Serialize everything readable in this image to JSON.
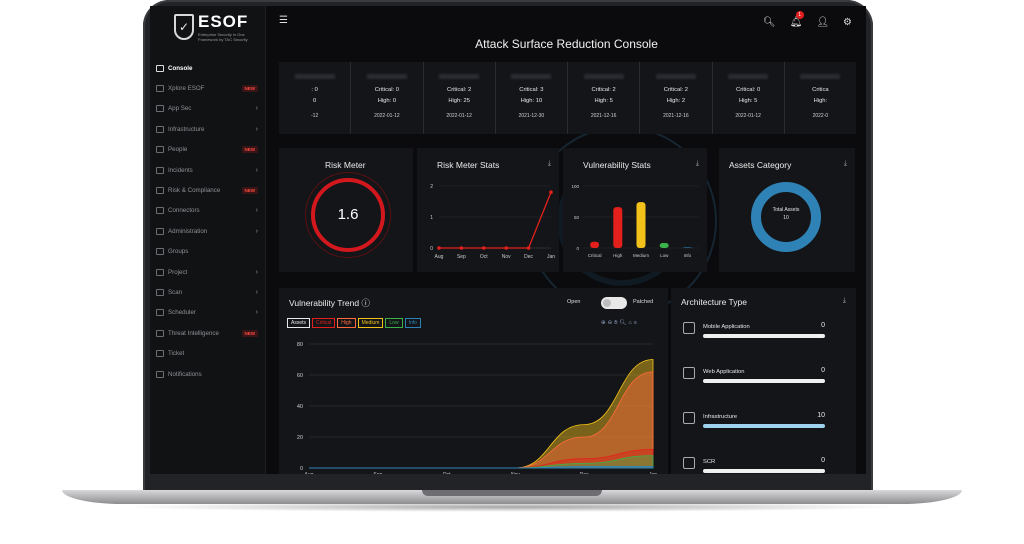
{
  "brand": {
    "name": "ESOF",
    "sub": "Enterprise Security in One Framework",
    "by": "by TAC Security"
  },
  "header": {
    "title": "Attack Surface Reduction Console",
    "notifications_count": "1"
  },
  "sidebar": {
    "items": [
      {
        "label": "Console",
        "active": true,
        "badge": "",
        "chevron": false
      },
      {
        "label": "Xplore ESOF",
        "badge": "NEW",
        "chevron": false
      },
      {
        "label": "App Sec",
        "badge": "",
        "chevron": true
      },
      {
        "label": "Infrastructure",
        "badge": "",
        "chevron": true
      },
      {
        "label": "People",
        "badge": "NEW",
        "chevron": false
      },
      {
        "label": "Incidents",
        "badge": "",
        "chevron": true
      },
      {
        "label": "Risk & Compliance",
        "badge": "NEW",
        "chevron": false
      },
      {
        "label": "Connectors",
        "badge": "",
        "chevron": true
      },
      {
        "label": "Administration",
        "badge": "",
        "chevron": true
      },
      {
        "label": "Groups",
        "badge": "",
        "chevron": false
      },
      {
        "label": "Project",
        "badge": "",
        "chevron": true
      },
      {
        "label": "Scan",
        "badge": "",
        "chevron": true
      },
      {
        "label": "Scheduler",
        "badge": "",
        "chevron": true
      },
      {
        "label": "Threat Intelligence",
        "badge": "NEW",
        "chevron": false
      },
      {
        "label": "Ticket",
        "badge": "",
        "chevron": false
      },
      {
        "label": "Notifications",
        "badge": "",
        "chevron": false
      }
    ]
  },
  "summary": [
    {
      "line1": ": 0",
      "line2": "0",
      "date": "-12"
    },
    {
      "line1": "Critical: 0",
      "line2": "High: 0",
      "date": "2022-01-12"
    },
    {
      "line1": "Critical: 2",
      "line2": "High: 25",
      "date": "2022-01-12"
    },
    {
      "line1": "Critical: 3",
      "line2": "High: 10",
      "date": "2021-12-30"
    },
    {
      "line1": "Critical: 2",
      "line2": "High: 5",
      "date": "2021-12-16"
    },
    {
      "line1": "Critical: 2",
      "line2": "High: 2",
      "date": "2021-12-16"
    },
    {
      "line1": "Critical: 0",
      "line2": "High: 5",
      "date": "2022-01-12"
    },
    {
      "line1": "Critica",
      "line2": "High:",
      "date": "2022-0"
    }
  ],
  "risk_meter": {
    "title": "Risk Meter",
    "value": "1.6"
  },
  "risk_stats": {
    "title": "Risk Meter Stats",
    "chart_data": {
      "type": "line",
      "categories": [
        "Aug",
        "Sep",
        "Oct",
        "Nov",
        "Dec",
        "Jan"
      ],
      "values": [
        0,
        0,
        0,
        0,
        0,
        1.8
      ],
      "ylim": [
        0,
        2
      ],
      "yticks": [
        "0",
        "1",
        "2"
      ]
    }
  },
  "vuln_stats": {
    "title": "Vulnerability Stats",
    "chart_data": {
      "type": "bar",
      "categories": [
        "Critical",
        "High",
        "Medium",
        "Low",
        "Info"
      ],
      "values": [
        10,
        66,
        74,
        8,
        1
      ],
      "ylim": [
        0,
        100
      ],
      "yticks": [
        "0",
        "50",
        "100"
      ],
      "colors": [
        "#e3201b",
        "#e3201b",
        "#f3c21a",
        "#3bb34a",
        "#2f82b6"
      ]
    }
  },
  "assets_category": {
    "title": "Assets Category",
    "center_label": "Total Assets",
    "center_value": "10"
  },
  "trend": {
    "title": "Vulnerability Trend",
    "toggle_left": "Open",
    "toggle_right": "Patched",
    "legend": [
      {
        "name": "Assets",
        "color": "#e8e8e8"
      },
      {
        "name": "Critical",
        "color": "#e3201b"
      },
      {
        "name": "High",
        "color": "#ff6a3d"
      },
      {
        "name": "Medium",
        "color": "#f3c21a"
      },
      {
        "name": "Low",
        "color": "#3bb34a"
      },
      {
        "name": "Info",
        "color": "#2f82b6"
      }
    ],
    "chart_data": {
      "type": "area",
      "x": [
        "Aug",
        "Sep",
        "Oct",
        "Nov",
        "Dec",
        "Jan"
      ],
      "ylim": [
        0,
        80
      ],
      "yticks": [
        "0",
        "20",
        "40",
        "60",
        "80"
      ],
      "series": [
        {
          "name": "Medium",
          "values": [
            0,
            0,
            0,
            0,
            28,
            70
          ]
        },
        {
          "name": "High",
          "values": [
            0,
            0,
            0,
            0,
            20,
            62
          ]
        },
        {
          "name": "Critical",
          "values": [
            0,
            0,
            0,
            0,
            6,
            12
          ]
        },
        {
          "name": "Low",
          "values": [
            0,
            0,
            0,
            0,
            3,
            8
          ]
        },
        {
          "name": "Info",
          "values": [
            0,
            0,
            0,
            0,
            1,
            1
          ]
        }
      ]
    }
  },
  "architecture": {
    "title": "Architecture Type",
    "items": [
      {
        "label": "Mobile Application",
        "value": "0"
      },
      {
        "label": "Web Application",
        "value": "0"
      },
      {
        "label": "Infrastructure",
        "value": "10"
      },
      {
        "label": "SCR",
        "value": "0"
      }
    ]
  }
}
